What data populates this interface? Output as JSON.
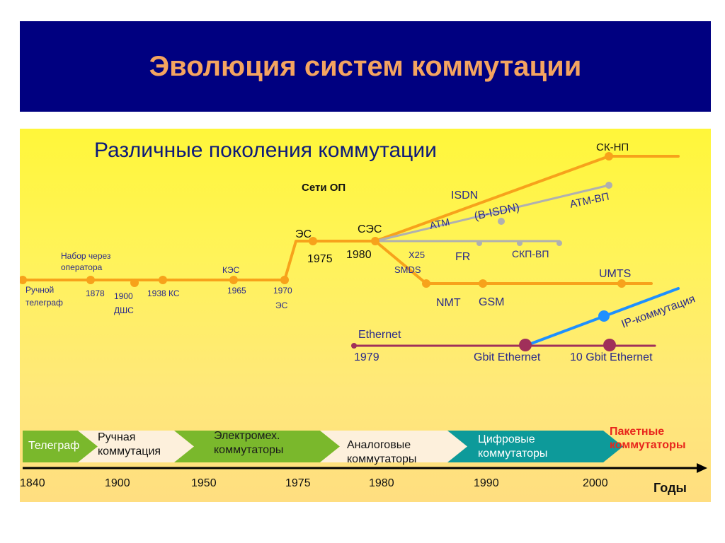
{
  "slide": {
    "title": "Эволюция систем коммутации"
  },
  "diagram": {
    "subtitle": "Различные поколения коммутации",
    "networks_label": "Сети ОП",
    "nodes": {
      "manual_telegraph": [
        "Ручной",
        "телеграф"
      ],
      "operator_dialing": [
        "Набор через",
        "оператора"
      ],
      "y1878": "1878",
      "y1900": "1900",
      "dshs": "ДШС",
      "ks1938": "1938 КС",
      "kes": "КЭС",
      "y1965": "1965",
      "y1970": "1970",
      "es_small": "ЭС",
      "es": "ЭС",
      "y1975": "1975",
      "ses": "СЭС",
      "y1980": "1980",
      "isdn": "ISDN",
      "bisdn": "(B-ISDN)",
      "atm": "ATM",
      "atm_vp": "ATM-ВП",
      "sk_np": "СК-НП",
      "x25": "X25",
      "smds": "SMDS",
      "fr": "FR",
      "skp_vp": "СКП-ВП",
      "nmt": "NMT",
      "gsm": "GSM",
      "umts": "UMTS",
      "ip_switching": "IP-коммутация",
      "ethernet": "Ethernet",
      "y1979": "1979",
      "gbit_ethernet": "Gbit Ethernet",
      "ten_gbit_ethernet": "10 Gbit Ethernet"
    },
    "eras": [
      {
        "label": [
          "Телеграф"
        ],
        "color": "#7ab82c"
      },
      {
        "label": [
          "Ручная",
          "коммутация"
        ],
        "color": "#fdf0dc"
      },
      {
        "label": [
          "Электромех.",
          "коммутаторы"
        ],
        "color": "#7ab82c"
      },
      {
        "label": [
          "Аналоговые",
          "коммутаторы"
        ],
        "color": "#fdf0dc"
      },
      {
        "label": [
          "Цифровые",
          "коммутаторы"
        ],
        "color": "#0d9a9a"
      }
    ],
    "packet_switches": [
      "Пакетные",
      "коммутаторы"
    ],
    "axis": {
      "ticks": [
        "1840",
        "1900",
        "1950",
        "1975",
        "1980",
        "1990",
        "2000"
      ],
      "unit_label": "Годы"
    },
    "colors": {
      "main_line": "#f7a21b",
      "grey_line": "#b0b0b0",
      "ethernet_line": "#a0305a",
      "ip_line": "#1e90ff",
      "subtitle": "#0d1a7a",
      "node_text": "#2a2a8a",
      "packet_text": "#e8261c",
      "title": "#f4a460",
      "banner": "#000080"
    }
  }
}
